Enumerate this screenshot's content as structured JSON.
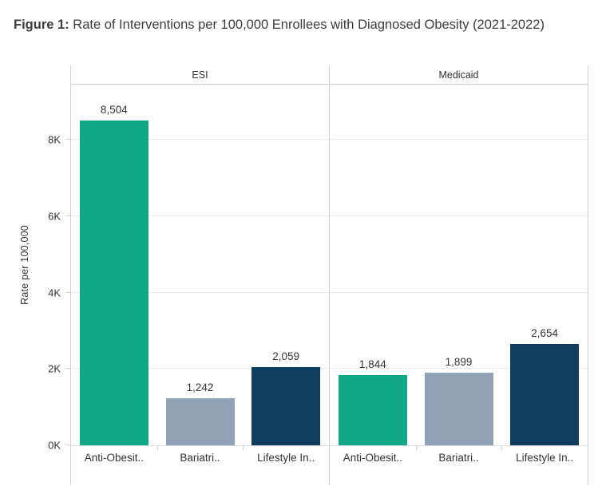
{
  "title": {
    "prefix": "Figure 1:",
    "text": " Rate of Interventions per 100,000 Enrollees with Diagnosed Obesity (2021-2022)"
  },
  "chart_data": {
    "type": "bar",
    "title": "Figure 1: Rate of Interventions per 100,000 Enrollees with Diagnosed Obesity (2021-2022)",
    "ylabel": "Rate per 100,000",
    "ylim": [
      0,
      9450
    ],
    "yticks": [
      {
        "value": 0,
        "label": "0K"
      },
      {
        "value": 2000,
        "label": "2K"
      },
      {
        "value": 4000,
        "label": "4K"
      },
      {
        "value": 6000,
        "label": "6K"
      },
      {
        "value": 8000,
        "label": "8K"
      }
    ],
    "grid": true,
    "legend": null,
    "categories": [
      "Anti-Obesit..",
      "Bariatri..",
      "Lifestyle In.."
    ],
    "panels": [
      {
        "label": "ESI",
        "values": [
          8504,
          1242,
          2059
        ],
        "value_labels": [
          "8,504",
          "1,242",
          "2,059"
        ]
      },
      {
        "label": "Medicaid",
        "values": [
          1844,
          1899,
          2654
        ],
        "value_labels": [
          "1,844",
          "1,899",
          "2,654"
        ]
      }
    ],
    "bar_colors": [
      "#11a886",
      "#91a2b6",
      "#0e3d5f"
    ]
  },
  "colors": {
    "teal": "#11a886",
    "gray_blue": "#91a2b6",
    "navy": "#0e3d5f",
    "frame_border": "#d0d0d0",
    "gridline": "#ebebeb",
    "text": "#333333"
  }
}
